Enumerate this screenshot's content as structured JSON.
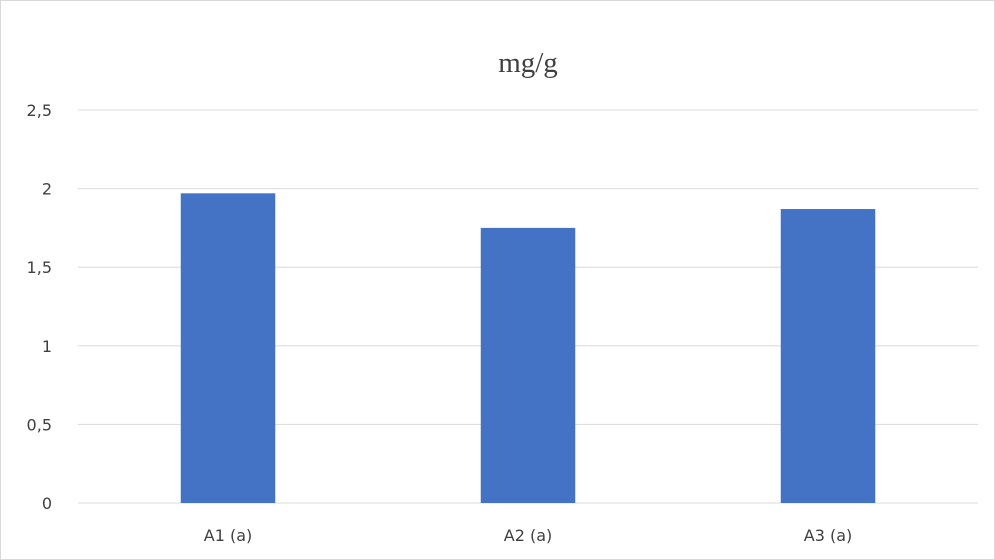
{
  "chart_data": {
    "type": "bar",
    "title": "mg/g",
    "categories": [
      "A1 (a)",
      "A2 (a)",
      "A3 (a)"
    ],
    "values": [
      1.97,
      1.75,
      1.87
    ],
    "ylim": [
      0,
      2.5
    ],
    "y_ticks": [
      0,
      0.5,
      1,
      1.5,
      2,
      2.5
    ],
    "y_tick_labels": [
      "0",
      "0,5",
      "1",
      "1,5",
      "2",
      "2,5"
    ],
    "grid": true,
    "legend": "none",
    "bar_color": "#4472c4",
    "gridline_color": "#d9d9d9",
    "text_color": "#404040"
  }
}
